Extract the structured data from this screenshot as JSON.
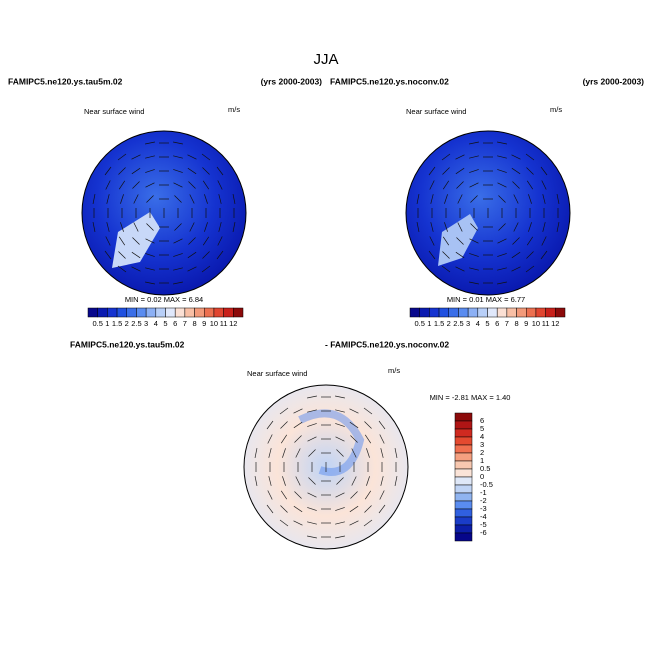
{
  "title": "JJA",
  "panels": [
    {
      "case": "FAMIPC5.ne120.ys.tau5m.02",
      "years": "(yrs 2000-2003)",
      "field": "Near surface wind",
      "units": "m/s",
      "minmax": "MIN =   0.02 MAX =   6.84"
    },
    {
      "case": "FAMIPC5.ne120.ys.noconv.02",
      "years": "(yrs 2000-2003)",
      "field": "Near surface wind",
      "units": "m/s",
      "minmax": "MIN =   0.01 MAX =   6.77"
    }
  ],
  "colorbar": {
    "labels": [
      "0.5",
      "1",
      "1.5",
      "2",
      "2.5",
      "3",
      "4",
      "5",
      "6",
      "7",
      "8",
      "9",
      "10",
      "11",
      "12"
    ],
    "colors": [
      "#08088c",
      "#0a1ab0",
      "#1533d0",
      "#2050e0",
      "#3a6ee8",
      "#5a8cf0",
      "#8cb0f5",
      "#b8cff8",
      "#e0e8fb",
      "#fbe0d4",
      "#f8bfa5",
      "#f29a7a",
      "#ec7050",
      "#e04530",
      "#c8201a",
      "#8c0a0a"
    ]
  },
  "difference": {
    "case_a": "FAMIPC5.ne120.ys.tau5m.02",
    "case_b": "- FAMIPC5.ne120.ys.noconv.02",
    "field": "Near surface wind",
    "units": "m/s",
    "minmax": "MIN =  -2.81 MAX =   1.40",
    "labels": [
      "6",
      "5",
      "4",
      "3",
      "2",
      "1",
      "0.5",
      "0",
      "-0.5",
      "-1",
      "-2",
      "-3",
      "-4",
      "-5",
      "-6"
    ],
    "colors": [
      "#8c0a0a",
      "#b01515",
      "#d02a20",
      "#e44a30",
      "#f07050",
      "#f5a080",
      "#f8c8b0",
      "#fbe4d8",
      "#dfe8f8",
      "#c0d4f5",
      "#90b4f0",
      "#5a8cf0",
      "#3060e0",
      "#1a3cc8",
      "#0c1ea8",
      "#06068a"
    ]
  }
}
